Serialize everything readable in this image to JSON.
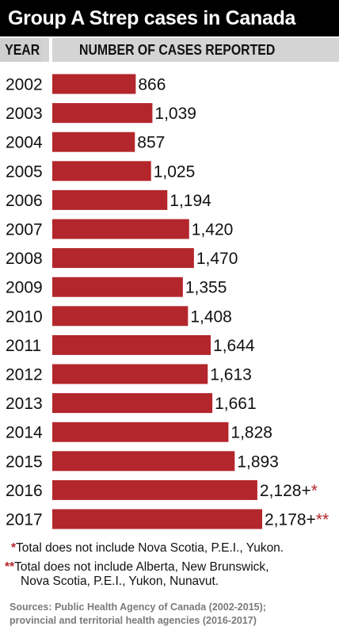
{
  "title": "Group A Strep cases in Canada",
  "header": {
    "year_label": "YEAR",
    "cases_label": "NUMBER OF CASES REPORTED"
  },
  "colors": {
    "bar": "#b3262b",
    "title_bg": "#000000",
    "header_bg": "#d4d4d4"
  },
  "chart_data": {
    "type": "bar",
    "orientation": "horizontal",
    "categories": [
      "2002",
      "2003",
      "2004",
      "2005",
      "2006",
      "2007",
      "2008",
      "2009",
      "2010",
      "2011",
      "2012",
      "2013",
      "2014",
      "2015",
      "2016",
      "2017"
    ],
    "values": [
      866,
      1039,
      857,
      1025,
      1194,
      1420,
      1470,
      1355,
      1408,
      1644,
      1613,
      1661,
      1828,
      1893,
      2128,
      2178
    ],
    "value_labels": [
      "866",
      "1,039",
      "857",
      "1,025",
      "1,194",
      "1,420",
      "1,470",
      "1,355",
      "1,408",
      "1,644",
      "1,613",
      "1,661",
      "1,828",
      "1,893",
      "2,128+",
      "2,178+"
    ],
    "value_markers": [
      "",
      "",
      "",
      "",
      "",
      "",
      "",
      "",
      "",
      "",
      "",
      "",
      "",
      "",
      "*",
      "**"
    ],
    "title": "Group A Strep cases in Canada",
    "xlabel": "NUMBER OF CASES REPORTED",
    "ylabel": "YEAR",
    "xlim": [
      0,
      2178
    ],
    "grid": false,
    "legend": "none"
  },
  "footnotes": [
    {
      "marker": "*",
      "text": "Total does not include Nova Scotia, P.E.I., Yukon."
    },
    {
      "marker": "**",
      "text": "Total does not include Alberta, New Brunswick,",
      "text2": "Nova Scotia, P.E.I., Yukon, Nunavut."
    }
  ],
  "sources": {
    "line1": "Sources: Public Health Agency of Canada (2002-2015);",
    "line2": "provincial and territorial health agencies (2016-2017)"
  }
}
